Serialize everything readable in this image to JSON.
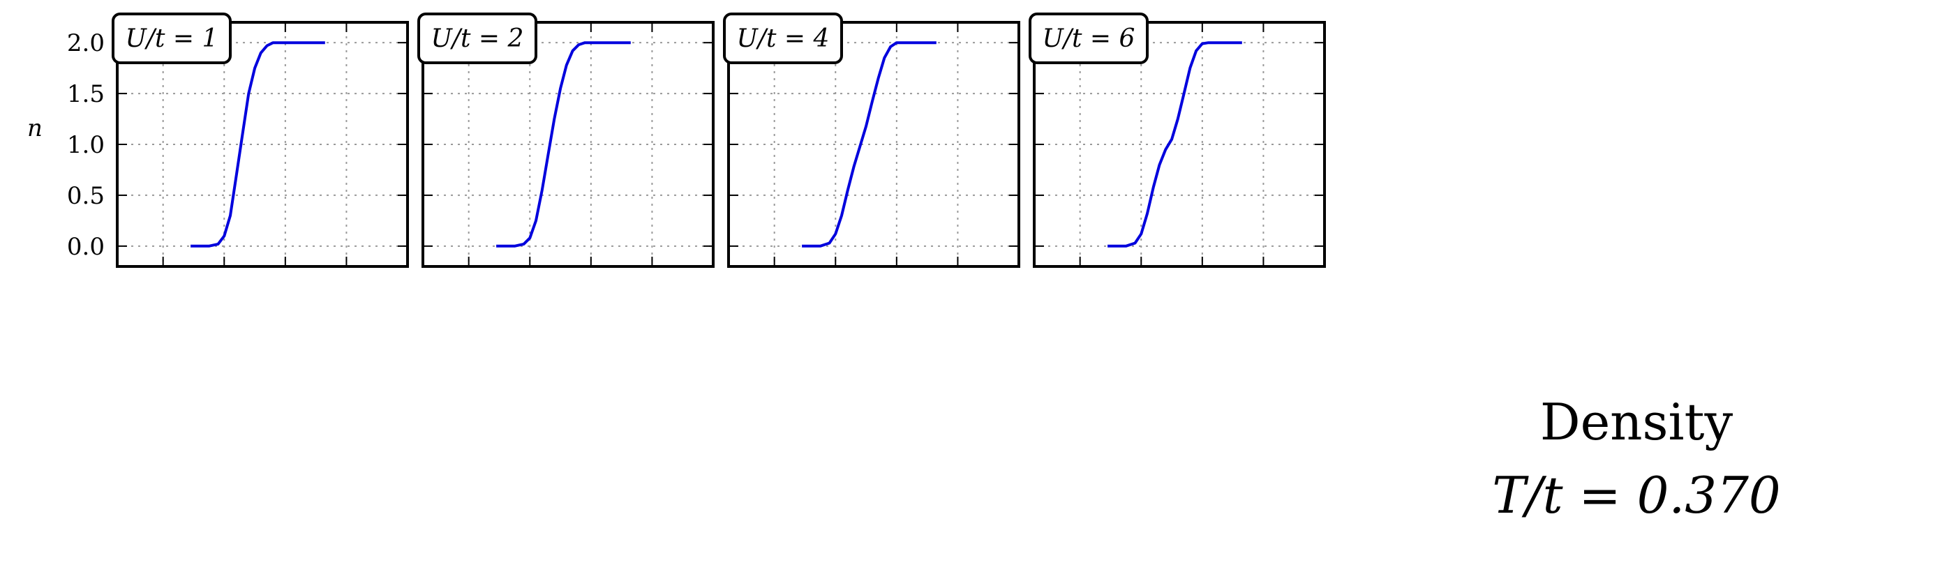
{
  "chart_data": {
    "type": "line",
    "title": "Density",
    "subtitle": "T/t = 0.370",
    "ylabel": "n",
    "ylim": [
      -0.2,
      2.2
    ],
    "yticks": [
      0.0,
      0.5,
      1.0,
      1.5,
      2.0
    ],
    "ytick_labels": [
      "0.0",
      "0.5",
      "1.0",
      "1.5",
      "2.0"
    ],
    "xlim": [
      -3.5,
      6.0
    ],
    "xticks": [
      -2,
      0,
      2,
      4,
      6
    ],
    "grid": true,
    "line_color": "#0000dd",
    "panels": [
      {
        "label": "U/t = 1",
        "x": [
          -1.1,
          -0.5,
          -0.2,
          0.0,
          0.2,
          0.4,
          0.6,
          0.8,
          1.0,
          1.2,
          1.4,
          1.6,
          1.8,
          2.0,
          2.2,
          2.4,
          2.6,
          3.0,
          3.3
        ],
        "y": [
          0.0,
          0.0,
          0.02,
          0.1,
          0.3,
          0.7,
          1.1,
          1.5,
          1.75,
          1.9,
          1.97,
          2.0,
          2.0,
          2.0,
          2.0,
          2.0,
          2.0,
          2.0,
          2.0
        ]
      },
      {
        "label": "U/t = 2",
        "x": [
          -1.1,
          -0.5,
          -0.2,
          0.0,
          0.2,
          0.4,
          0.6,
          0.8,
          1.0,
          1.2,
          1.4,
          1.6,
          1.8,
          2.0,
          2.2,
          2.4,
          2.6,
          3.0,
          3.3
        ],
        "y": [
          0.0,
          0.0,
          0.02,
          0.08,
          0.25,
          0.55,
          0.9,
          1.25,
          1.55,
          1.78,
          1.92,
          1.98,
          2.0,
          2.0,
          2.0,
          2.0,
          2.0,
          2.0,
          2.0
        ]
      },
      {
        "label": "U/t = 4",
        "x": [
          -1.1,
          -0.5,
          -0.2,
          0.0,
          0.2,
          0.4,
          0.6,
          0.8,
          1.0,
          1.2,
          1.4,
          1.6,
          1.8,
          2.0,
          2.2,
          2.4,
          2.6,
          3.0,
          3.3
        ],
        "y": [
          0.0,
          0.0,
          0.03,
          0.12,
          0.3,
          0.55,
          0.78,
          0.98,
          1.18,
          1.42,
          1.65,
          1.85,
          1.96,
          2.0,
          2.0,
          2.0,
          2.0,
          2.0,
          2.0
        ]
      },
      {
        "label": "U/t = 6",
        "x": [
          -1.1,
          -0.5,
          -0.2,
          0.0,
          0.2,
          0.4,
          0.6,
          0.8,
          1.0,
          1.2,
          1.4,
          1.6,
          1.8,
          2.0,
          2.2,
          2.4,
          2.6,
          3.0,
          3.3
        ],
        "y": [
          0.0,
          0.0,
          0.03,
          0.12,
          0.32,
          0.58,
          0.8,
          0.95,
          1.05,
          1.25,
          1.5,
          1.75,
          1.92,
          1.99,
          2.0,
          2.0,
          2.0,
          2.0,
          2.0
        ]
      }
    ]
  }
}
